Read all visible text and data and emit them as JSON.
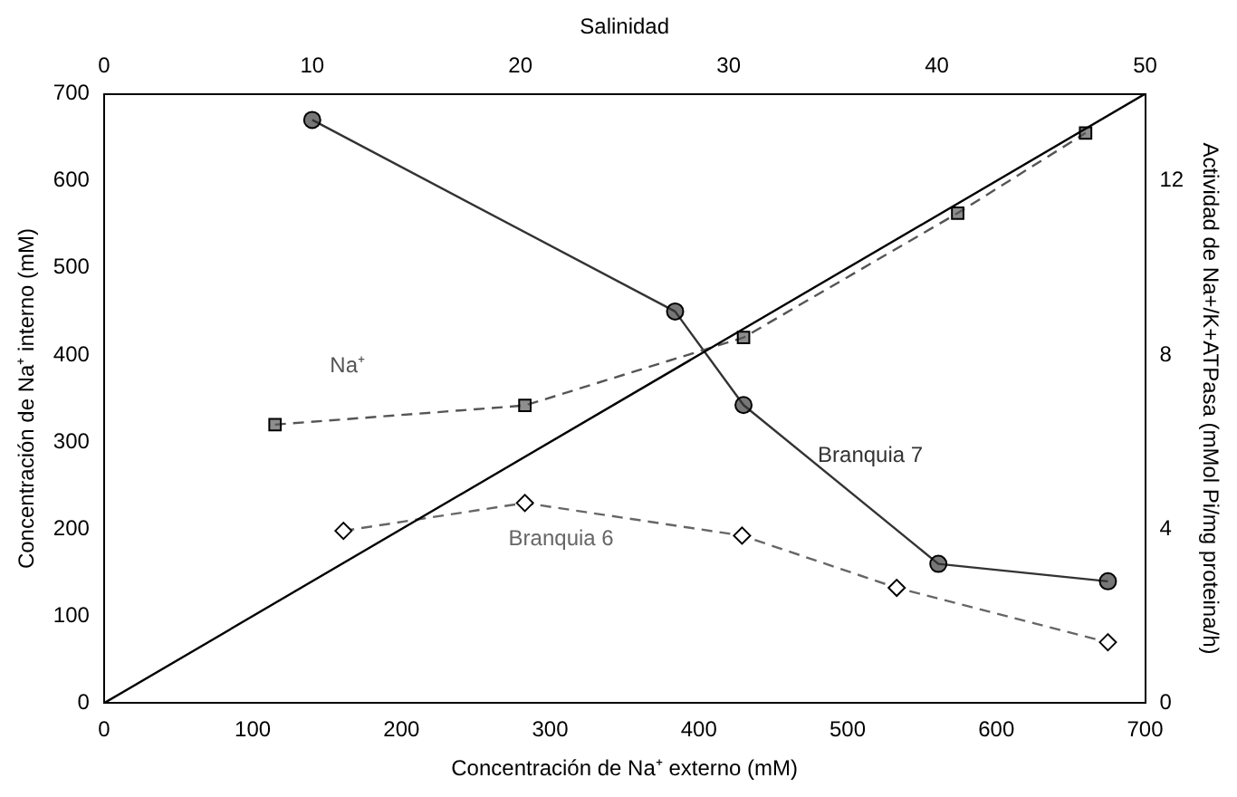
{
  "chart_data": {
    "type": "line",
    "xlabel": "Concentración de Na⁺ externo (mM)",
    "ylabel": "Concentración de Na⁺ interno (mM)",
    "x2label": "Salinidad",
    "y2label": "Actividad de Na+/K+ATPasa (mMol Pi/mg proteina/h)",
    "xlim": [
      0,
      700
    ],
    "xticks": [
      0,
      100,
      200,
      300,
      400,
      500,
      600,
      700
    ],
    "x2lim": [
      0,
      50
    ],
    "x2ticks": [
      0,
      10,
      20,
      30,
      40,
      50
    ],
    "ylim": [
      0,
      700
    ],
    "yticks": [
      0,
      100,
      200,
      300,
      400,
      500,
      600,
      700
    ],
    "y2lim": [
      0,
      14
    ],
    "y2ticks": [
      0,
      4,
      8,
      12
    ],
    "grid": false,
    "legend": false,
    "series": [
      {
        "color": "#000000",
        "x": [
          0,
          700
        ],
        "values": [
          0,
          700
        ],
        "marker": "none",
        "line_style": "solid"
      },
      {
        "name": "Na⁺",
        "color": "#555555",
        "x": [
          115,
          283,
          430,
          574,
          660
        ],
        "values": [
          320,
          342,
          420,
          563,
          655
        ],
        "marker": "square",
        "line_style": "dashed"
      },
      {
        "name": "Branquia 7",
        "color": "#333333",
        "axis": "y2",
        "x": [
          140,
          384,
          430,
          561,
          675
        ],
        "values": [
          13.4,
          9.0,
          6.85,
          3.2,
          2.8
        ],
        "marker": "circle",
        "line_style": "solid"
      },
      {
        "name": "Branquia 6",
        "color": "#666666",
        "axis": "y2",
        "x": [
          161,
          283,
          429,
          533,
          675
        ],
        "values": [
          3.96,
          4.6,
          3.85,
          2.65,
          1.4
        ],
        "marker": "diamond",
        "line_style": "dashed"
      }
    ]
  }
}
